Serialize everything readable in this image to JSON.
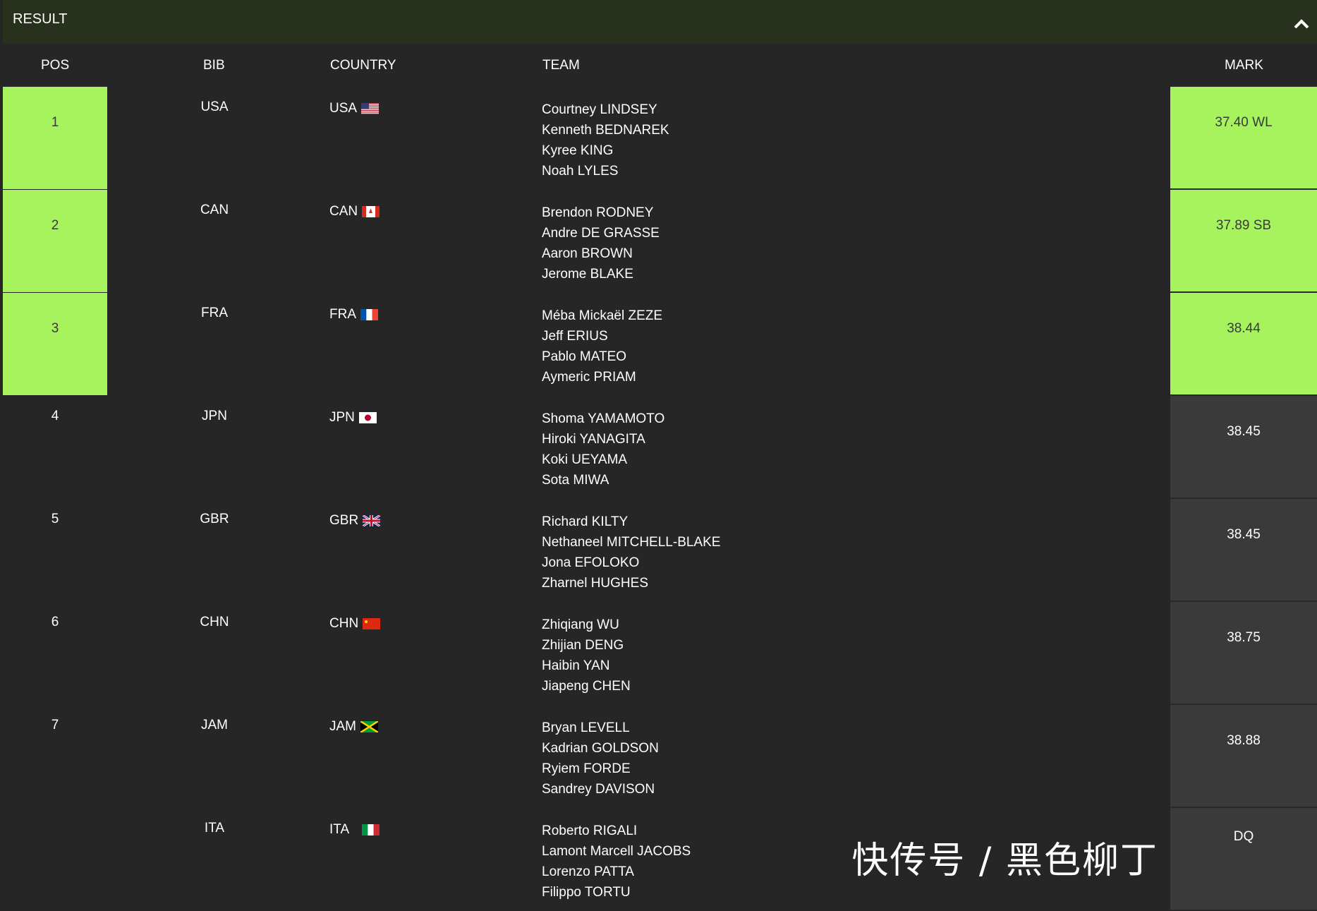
{
  "section_title": "RESULT",
  "columns": {
    "pos": "POS",
    "bib": "BIB",
    "country": "COUNTRY",
    "team": "TEAM",
    "mark": "MARK"
  },
  "colors": {
    "medal": "#a6f35e",
    "header": "#27311b",
    "background": "#262626",
    "mark_cell": "#3a3a3a"
  },
  "rows": [
    {
      "pos": "1",
      "bib": "USA",
      "country": "USA",
      "flag": "usa",
      "team": [
        "Courtney LINDSEY",
        "Kenneth BEDNAREK",
        "Kyree KING",
        "Noah LYLES"
      ],
      "mark": "37.40 WL",
      "medal": true
    },
    {
      "pos": "2",
      "bib": "CAN",
      "country": "CAN",
      "flag": "can",
      "team": [
        "Brendon RODNEY",
        "Andre DE GRASSE",
        "Aaron BROWN",
        "Jerome BLAKE"
      ],
      "mark": "37.89 SB",
      "medal": true
    },
    {
      "pos": "3",
      "bib": "FRA",
      "country": "FRA",
      "flag": "fra",
      "team": [
        "Méba Mickaël ZEZE",
        "Jeff ERIUS",
        "Pablo MATEO",
        "Aymeric PRIAM"
      ],
      "mark": "38.44",
      "medal": true
    },
    {
      "pos": "4",
      "bib": "JPN",
      "country": "JPN",
      "flag": "jpn",
      "team": [
        "Shoma YAMAMOTO",
        "Hiroki YANAGITA",
        "Koki UEYAMA",
        "Sota MIWA"
      ],
      "mark": "38.45",
      "medal": false
    },
    {
      "pos": "5",
      "bib": "GBR",
      "country": "GBR",
      "flag": "gbr",
      "team": [
        "Richard KILTY",
        "Nethaneel MITCHELL-BLAKE",
        "Jona EFOLOKO",
        "Zharnel HUGHES"
      ],
      "mark": "38.45",
      "medal": false
    },
    {
      "pos": "6",
      "bib": "CHN",
      "country": "CHN",
      "flag": "chn",
      "team": [
        "Zhiqiang WU",
        "Zhijian DENG",
        "Haibin YAN",
        "Jiapeng CHEN"
      ],
      "mark": "38.75",
      "medal": false
    },
    {
      "pos": "7",
      "bib": "JAM",
      "country": "JAM",
      "flag": "jam",
      "team": [
        "Bryan LEVELL",
        "Kadrian GOLDSON",
        "Ryiem FORDE",
        "Sandrey DAVISON"
      ],
      "mark": "38.88",
      "medal": false
    },
    {
      "pos": "",
      "bib": "ITA",
      "country": "ITA",
      "flag": "ita",
      "team": [
        "Roberto RIGALI",
        "Lamont Marcell JACOBS",
        "Lorenzo PATTA",
        "Filippo TORTU"
      ],
      "mark": "DQ",
      "medal": false
    }
  ],
  "watermark": "快传号 / 黑色柳丁"
}
